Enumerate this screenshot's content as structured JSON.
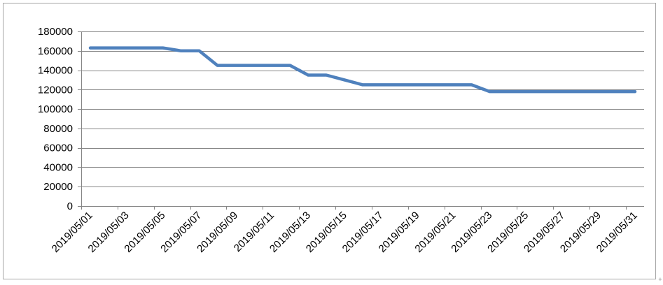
{
  "chart_data": {
    "type": "line",
    "title": "",
    "xlabel": "",
    "ylabel": "",
    "ylim": [
      0,
      180000
    ],
    "yticks": [
      0,
      20000,
      40000,
      60000,
      80000,
      100000,
      120000,
      140000,
      160000,
      180000
    ],
    "grid": "horizontal",
    "legend": "none",
    "x": [
      "2019/05/01",
      "2019/05/02",
      "2019/05/03",
      "2019/05/04",
      "2019/05/05",
      "2019/05/06",
      "2019/05/07",
      "2019/05/08",
      "2019/05/09",
      "2019/05/10",
      "2019/05/11",
      "2019/05/12",
      "2019/05/13",
      "2019/05/14",
      "2019/05/15",
      "2019/05/16",
      "2019/05/17",
      "2019/05/18",
      "2019/05/19",
      "2019/05/20",
      "2019/05/21",
      "2019/05/22",
      "2019/05/23",
      "2019/05/24",
      "2019/05/25",
      "2019/05/26",
      "2019/05/27",
      "2019/05/28",
      "2019/05/29",
      "2019/05/30",
      "2019/05/31"
    ],
    "xtick_labels": [
      "2019/05/01",
      "2019/05/03",
      "2019/05/05",
      "2019/05/07",
      "2019/05/09",
      "2019/05/11",
      "2019/05/13",
      "2019/05/15",
      "2019/05/17",
      "2019/05/19",
      "2019/05/21",
      "2019/05/23",
      "2019/05/25",
      "2019/05/27",
      "2019/05/29",
      "2019/05/31"
    ],
    "series": [
      {
        "values": [
          163000,
          163000,
          163000,
          163000,
          163000,
          160000,
          160000,
          145000,
          145000,
          145000,
          145000,
          145000,
          135000,
          135000,
          130000,
          125000,
          125000,
          125000,
          125000,
          125000,
          125000,
          125000,
          118000,
          118000,
          118000,
          118000,
          118000,
          118000,
          118000,
          118000,
          118000
        ]
      }
    ],
    "colors": {
      "line": "#4f81bd",
      "grid": "#868686",
      "axis": "#868686",
      "border": "#a6a6a6"
    }
  },
  "corner_mark": "+"
}
